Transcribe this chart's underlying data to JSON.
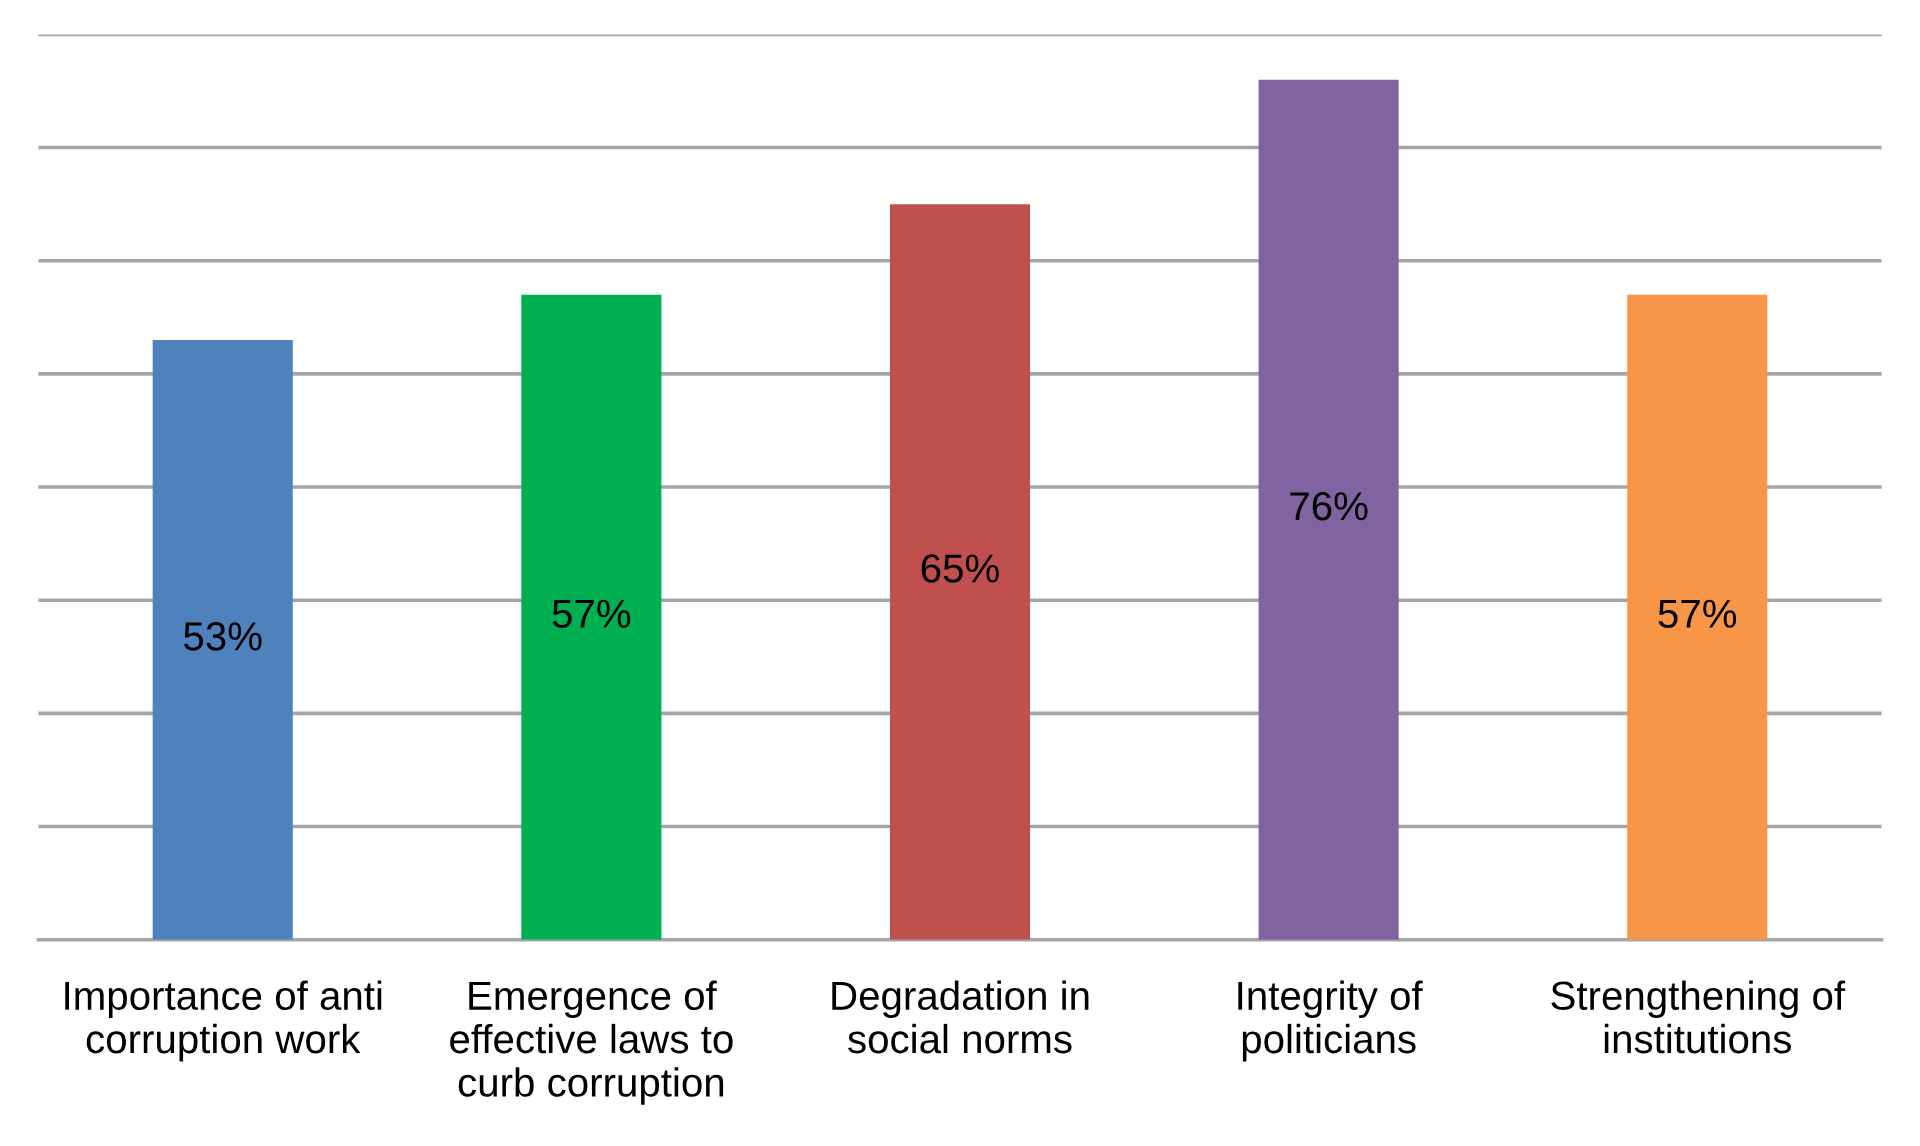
{
  "chart_data": {
    "type": "bar",
    "categories": [
      "Importance of anti corruption work",
      "Emergence of effective laws to curb corruption",
      "Degradation in social norms",
      "Integrity of politicians",
      "Strengthening of institutions"
    ],
    "values": [
      53,
      57,
      65,
      76,
      57
    ],
    "colors": [
      "#4f81bd",
      "#00b050",
      "#c0504d",
      "#8064a2",
      "#f79646"
    ],
    "value_labels": [
      "53%",
      "57%",
      "65%",
      "76%",
      "57%"
    ],
    "ylim": [
      0,
      80
    ],
    "yticks": [
      {
        "value": 0,
        "label": null
      },
      {
        "value": 10,
        "label": null
      },
      {
        "value": 20,
        "label": null
      },
      {
        "value": 30,
        "label": null
      },
      {
        "value": 40,
        "label": null
      },
      {
        "value": 50,
        "label": null
      },
      {
        "value": 60,
        "label": null
      },
      {
        "value": 70,
        "label": null
      },
      {
        "value": 80,
        "label": null
      }
    ],
    "grid": "y"
  }
}
